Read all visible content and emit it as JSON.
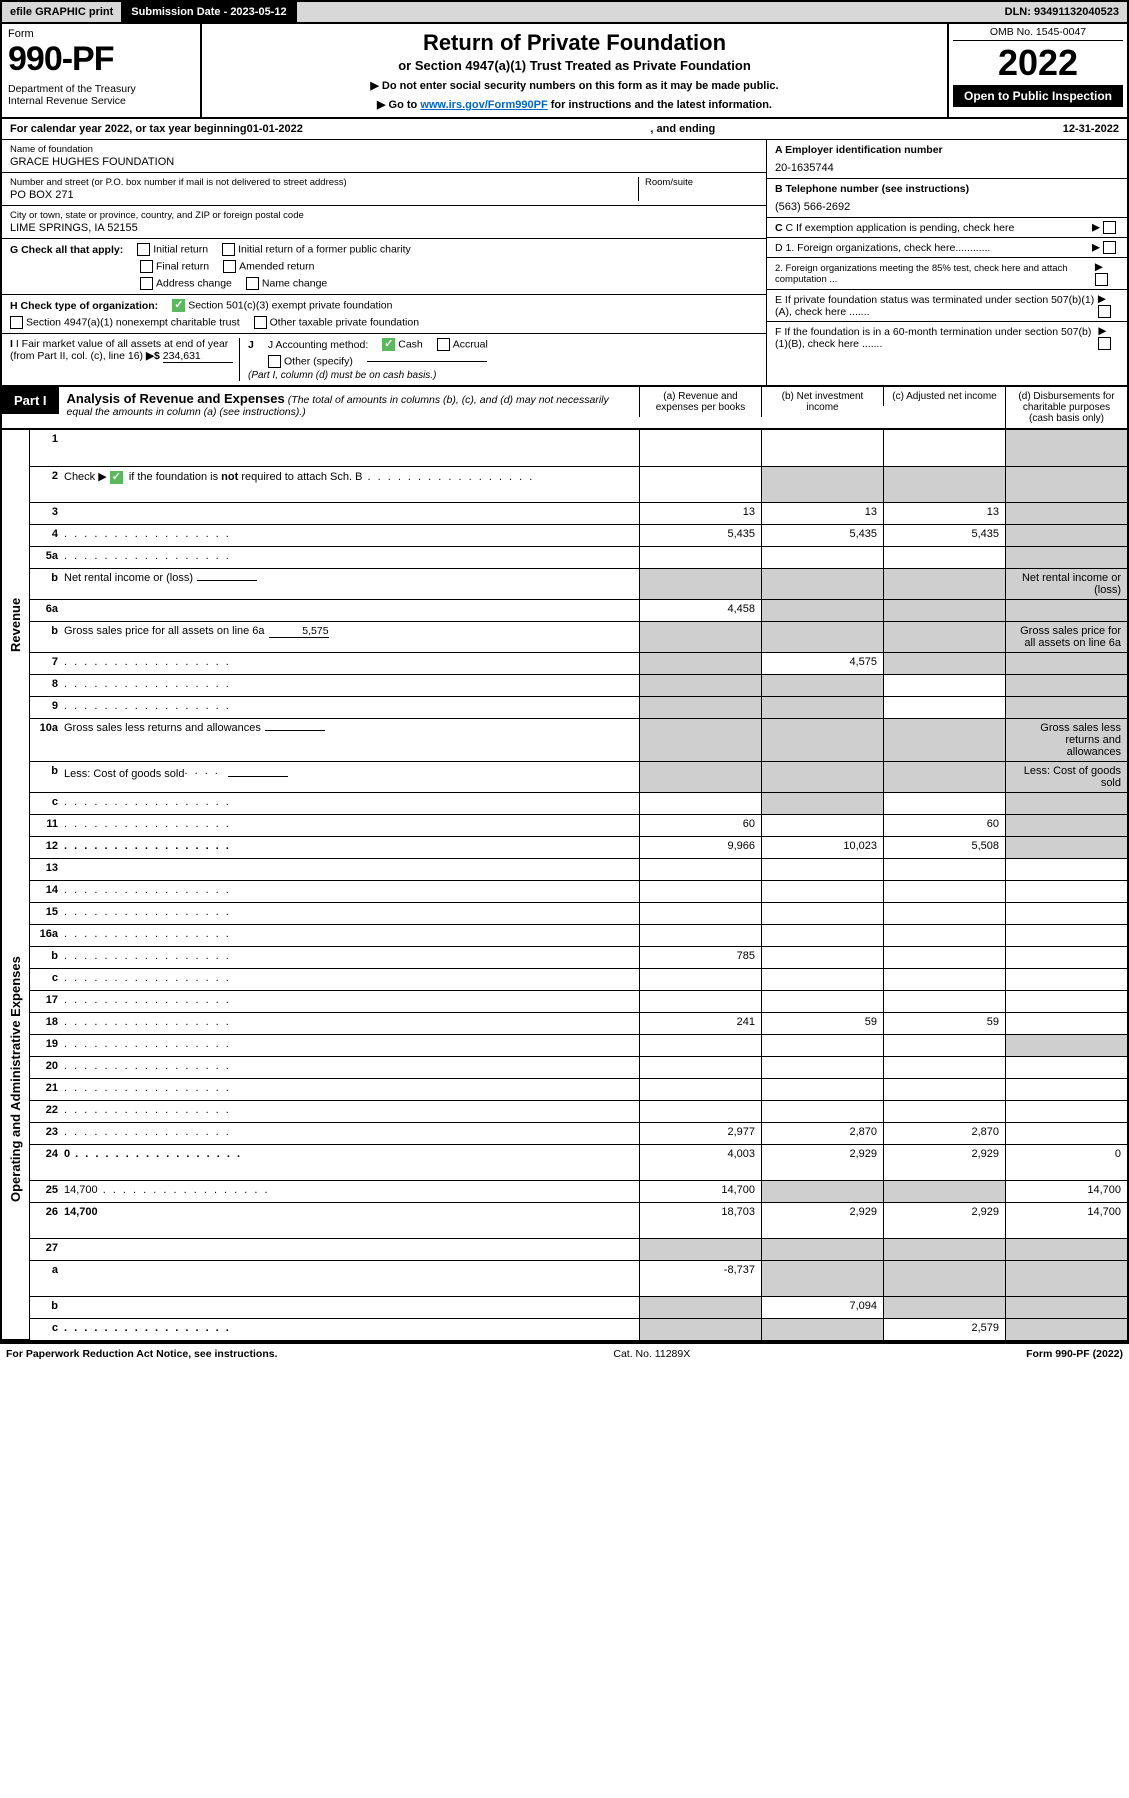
{
  "top_bar": {
    "efile": "efile GRAPHIC print",
    "sub_date_label": "Submission Date - 2023-05-12",
    "dln": "DLN: 93491132040523"
  },
  "header": {
    "form_label": "Form",
    "form_number": "990-PF",
    "dept": "Department of the Treasury\nInternal Revenue Service",
    "title": "Return of Private Foundation",
    "subtitle": "or Section 4947(a)(1) Trust Treated as Private Foundation",
    "notice1": "▶ Do not enter social security numbers on this form as it may be made public.",
    "notice2_pre": "▶ Go to ",
    "notice2_link": "www.irs.gov/Form990PF",
    "notice2_post": " for instructions and the latest information.",
    "omb": "OMB No. 1545-0047",
    "year": "2022",
    "open_public": "Open to Public Inspection"
  },
  "calyear": {
    "pre": "For calendar year 2022, or tax year beginning ",
    "begin": "01-01-2022",
    "mid": ", and ending ",
    "end": "12-31-2022"
  },
  "info": {
    "name_label": "Name of foundation",
    "name": "GRACE HUGHES FOUNDATION",
    "addr_label": "Number and street (or P.O. box number if mail is not delivered to street address)",
    "addr": "PO BOX 271",
    "room_label": "Room/suite",
    "room": "",
    "city_label": "City or town, state or province, country, and ZIP or foreign postal code",
    "city": "LIME SPRINGS, IA  52155",
    "ein_label": "A Employer identification number",
    "ein": "20-1635744",
    "tel_label": "B Telephone number (see instructions)",
    "tel": "(563) 566-2692",
    "c_label": "C If exemption application is pending, check here",
    "d1": "D 1. Foreign organizations, check here............",
    "d2": "2. Foreign organizations meeting the 85% test, check here and attach computation ...",
    "e_label": "E  If private foundation status was terminated under section 507(b)(1)(A), check here .......",
    "f_label": "F  If the foundation is in a 60-month termination under section 507(b)(1)(B), check here .......",
    "g_label": "G Check all that apply:",
    "g_opts": {
      "initial": "Initial return",
      "initial_former": "Initial return of a former public charity",
      "final": "Final return",
      "amended": "Amended return",
      "addr_change": "Address change",
      "name_change": "Name change"
    },
    "h_label": "H Check type of organization:",
    "h_opts": {
      "501c3": "Section 501(c)(3) exempt private foundation",
      "4947": "Section 4947(a)(1) nonexempt charitable trust",
      "other_tax": "Other taxable private foundation"
    },
    "i_label": "I Fair market value of all assets at end of year (from Part II, col. (c), line 16)",
    "i_val": "234,631",
    "j_label": "J Accounting method:",
    "j_cash": "Cash",
    "j_accrual": "Accrual",
    "j_other": "Other (specify)",
    "j_note": "(Part I, column (d) must be on cash basis.)"
  },
  "part1": {
    "tag": "Part I",
    "title": "Analysis of Revenue and Expenses",
    "sub": "(The total of amounts in columns (b), (c), and (d) may not necessarily equal the amounts in column (a) (see instructions).)",
    "cols": {
      "a": "(a)  Revenue and expenses per books",
      "b": "(b)  Net investment income",
      "c": "(c)  Adjusted net income",
      "d": "(d)  Disbursements for charitable purposes (cash basis only)"
    }
  },
  "side_labels": {
    "revenue": "Revenue",
    "opex": "Operating and Administrative Expenses"
  },
  "rows": {
    "r1": {
      "n": "1",
      "d": "",
      "a": "",
      "b": "",
      "c": "",
      "tall": true,
      "greyD": true
    },
    "r2": {
      "n": "2",
      "pre": "Check ▶ ",
      "post": " if the foundation is ",
      "bold_not": "not",
      "post2": " required to attach Sch. B",
      "a": "",
      "b": "",
      "c": "",
      "d": "",
      "tall": true,
      "chk": true,
      "greyB": true,
      "greyC": true,
      "greyD": true,
      "dots": true
    },
    "r3": {
      "n": "3",
      "d": "",
      "a": "13",
      "b": "13",
      "c": "13",
      "greyD": true
    },
    "r4": {
      "n": "4",
      "d": "",
      "a": "5,435",
      "b": "5,435",
      "c": "5,435",
      "dots": true,
      "greyD": true
    },
    "r5a": {
      "n": "5a",
      "d": "",
      "a": "",
      "b": "",
      "c": "",
      "dots": true,
      "greyD": true
    },
    "r5b": {
      "n": "b",
      "d": "Net rental income or (loss)",
      "inline": "",
      "noColsA": true,
      "greyA": true,
      "greyB": true,
      "greyC": true,
      "greyD": true
    },
    "r6a": {
      "n": "6a",
      "d": "",
      "a": "4,458",
      "b": "",
      "c": "",
      "greyB": true,
      "greyC": true,
      "greyD": true
    },
    "r6b": {
      "n": "b",
      "d": "Gross sales price for all assets on line 6a",
      "inline": "5,575",
      "greyA": true,
      "greyB": true,
      "greyC": true,
      "greyD": true
    },
    "r7": {
      "n": "7",
      "d": "",
      "a": "",
      "b": "4,575",
      "c": "",
      "dots": true,
      "greyA": true,
      "greyC": true,
      "greyD": true
    },
    "r8": {
      "n": "8",
      "d": "",
      "a": "",
      "b": "",
      "c": "",
      "dots": true,
      "greyA": true,
      "greyB": true,
      "greyD": true
    },
    "r9": {
      "n": "9",
      "d": "",
      "a": "",
      "b": "",
      "c": "",
      "dots": true,
      "greyA": true,
      "greyB": true,
      "greyD": true
    },
    "r10a": {
      "n": "10a",
      "d": "Gross sales less returns and allowances",
      "inline": "",
      "greyA": true,
      "greyB": true,
      "greyC": true,
      "greyD": true
    },
    "r10b": {
      "n": "b",
      "d": "Less: Cost of goods sold",
      "inline": "",
      "dots": true,
      "greyA": true,
      "greyB": true,
      "greyC": true,
      "greyD": true
    },
    "r10c": {
      "n": "c",
      "d": "",
      "a": "",
      "b": "",
      "c": "",
      "dots": true,
      "greyB": true,
      "greyD": true
    },
    "r11": {
      "n": "11",
      "d": "",
      "a": "60",
      "b": "",
      "c": "60",
      "dots": true,
      "greyD": true
    },
    "r12": {
      "n": "12",
      "d": "",
      "a": "9,966",
      "b": "10,023",
      "c": "5,508",
      "bold": true,
      "dots": true,
      "greyD": true
    },
    "r13": {
      "n": "13",
      "d": "",
      "a": "",
      "b": "",
      "c": ""
    },
    "r14": {
      "n": "14",
      "d": "",
      "a": "",
      "b": "",
      "c": "",
      "dots": true
    },
    "r15": {
      "n": "15",
      "d": "",
      "a": "",
      "b": "",
      "c": "",
      "dots": true
    },
    "r16a": {
      "n": "16a",
      "d": "",
      "a": "",
      "b": "",
      "c": "",
      "dots": true
    },
    "r16b": {
      "n": "b",
      "d": "",
      "a": "785",
      "b": "",
      "c": "",
      "dots": true
    },
    "r16c": {
      "n": "c",
      "d": "",
      "a": "",
      "b": "",
      "c": "",
      "dots": true
    },
    "r17": {
      "n": "17",
      "d": "",
      "a": "",
      "b": "",
      "c": "",
      "dots": true
    },
    "r18": {
      "n": "18",
      "d": "",
      "a": "241",
      "b": "59",
      "c": "59",
      "dots": true
    },
    "r19": {
      "n": "19",
      "d": "",
      "a": "",
      "b": "",
      "c": "",
      "dots": true,
      "greyD": true
    },
    "r20": {
      "n": "20",
      "d": "",
      "a": "",
      "b": "",
      "c": "",
      "dots": true
    },
    "r21": {
      "n": "21",
      "d": "",
      "a": "",
      "b": "",
      "c": "",
      "dots": true
    },
    "r22": {
      "n": "22",
      "d": "",
      "a": "",
      "b": "",
      "c": "",
      "dots": true
    },
    "r23": {
      "n": "23",
      "d": "",
      "a": "2,977",
      "b": "2,870",
      "c": "2,870",
      "dots": true
    },
    "r24": {
      "n": "24",
      "d": "0",
      "a": "4,003",
      "b": "2,929",
      "c": "2,929",
      "bold": true,
      "tall": true,
      "dots": true
    },
    "r25": {
      "n": "25",
      "d": "14,700",
      "a": "14,700",
      "b": "",
      "c": "",
      "dots": true,
      "greyB": true,
      "greyC": true
    },
    "r26": {
      "n": "26",
      "d": "14,700",
      "a": "18,703",
      "b": "2,929",
      "c": "2,929",
      "bold": true,
      "tall": true
    },
    "r27": {
      "n": "27",
      "d": "",
      "a": "",
      "b": "",
      "c": "",
      "greyA": true,
      "greyB": true,
      "greyC": true,
      "greyD": true
    },
    "r27a": {
      "n": "a",
      "d": "",
      "a": "-8,737",
      "b": "",
      "c": "",
      "bold": true,
      "tall": true,
      "greyB": true,
      "greyC": true,
      "greyD": true
    },
    "r27b": {
      "n": "b",
      "d": "",
      "a": "",
      "b": "7,094",
      "c": "",
      "bold": true,
      "greyA": true,
      "greyC": true,
      "greyD": true
    },
    "r27c": {
      "n": "c",
      "d": "",
      "a": "",
      "b": "",
      "c": "2,579",
      "bold": true,
      "dots": true,
      "greyA": true,
      "greyB": true,
      "greyD": true
    }
  },
  "footer": {
    "left": "For Paperwork Reduction Act Notice, see instructions.",
    "mid": "Cat. No. 11289X",
    "right": "Form 990-PF (2022)"
  },
  "row_order_revenue": [
    "r1",
    "r2",
    "r3",
    "r4",
    "r5a",
    "r5b",
    "r6a",
    "r6b",
    "r7",
    "r8",
    "r9",
    "r10a",
    "r10b",
    "r10c",
    "r11",
    "r12"
  ],
  "row_order_opex": [
    "r13",
    "r14",
    "r15",
    "r16a",
    "r16b",
    "r16c",
    "r17",
    "r18",
    "r19",
    "r20",
    "r21",
    "r22",
    "r23",
    "r24",
    "r25",
    "r26",
    "r27",
    "r27a",
    "r27b",
    "r27c"
  ]
}
